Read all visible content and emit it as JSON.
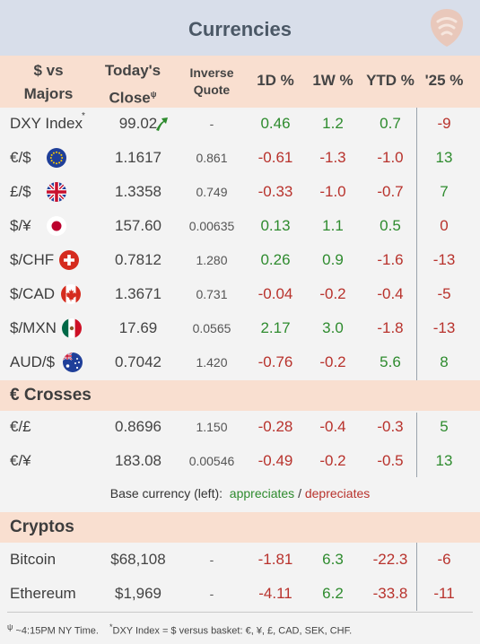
{
  "title": "Currencies",
  "header": {
    "col_pair": "$ vs Majors",
    "col_pair_l1": "$ vs",
    "col_pair_l2": "Majors",
    "col_close_l1": "Today's",
    "col_close_l2": "Close",
    "col_close_mark": "ψ",
    "col_inv_l1": "Inverse",
    "col_inv_l2": "Quote",
    "col_1d": "1D %",
    "col_1w": "1W %",
    "col_ytd": "YTD %",
    "col_25": "'25 %"
  },
  "colors": {
    "positive": "#2e8b2e",
    "negative": "#b8322c",
    "header_bg": "#f9dfd0",
    "title_bg": "#d8deea"
  },
  "majors": [
    {
      "name": "DXY Index",
      "name_mark": "*",
      "close": "99.02",
      "inverse": "-",
      "d1": "0.46",
      "w1": "1.2",
      "ytd": "0.7",
      "y25": "-9",
      "icon": "up-arrow-icon"
    },
    {
      "name": "€/$",
      "close": "1.1617",
      "inverse": "0.861",
      "d1": "-0.61",
      "w1": "-1.3",
      "ytd": "-1.0",
      "y25": "13",
      "icon": "eu-flag-icon"
    },
    {
      "name": "£/$",
      "close": "1.3358",
      "inverse": "0.749",
      "d1": "-0.33",
      "w1": "-1.0",
      "ytd": "-0.7",
      "y25": "7",
      "icon": "uk-flag-icon"
    },
    {
      "name": "$/¥",
      "close": "157.60",
      "inverse": "0.00635",
      "d1": "0.13",
      "w1": "1.1",
      "ytd": "0.5",
      "y25": "0",
      "icon": "japan-flag-icon"
    },
    {
      "name": "$/CHF",
      "close": "0.7812",
      "inverse": "1.280",
      "d1": "0.26",
      "w1": "0.9",
      "ytd": "-1.6",
      "y25": "-13",
      "icon": "swiss-flag-icon"
    },
    {
      "name": "$/CAD",
      "close": "1.3671",
      "inverse": "0.731",
      "d1": "-0.04",
      "w1": "-0.2",
      "ytd": "-0.4",
      "y25": "-5",
      "icon": "canada-flag-icon"
    },
    {
      "name": "$/MXN",
      "close": "17.69",
      "inverse": "0.0565",
      "d1": "2.17",
      "w1": "3.0",
      "ytd": "-1.8",
      "y25": "-13",
      "icon": "mexico-flag-icon"
    },
    {
      "name": "AUD/$",
      "close": "0.7042",
      "inverse": "1.420",
      "d1": "-0.76",
      "w1": "-0.2",
      "ytd": "5.6",
      "y25": "8",
      "icon": "australia-flag-icon"
    }
  ],
  "crosses_title": "€ Crosses",
  "crosses": [
    {
      "name": "€/£",
      "close": "0.8696",
      "inverse": "1.150",
      "d1": "-0.28",
      "w1": "-0.4",
      "ytd": "-0.3",
      "y25": "5"
    },
    {
      "name": "€/¥",
      "close": "183.08",
      "inverse": "0.00546",
      "d1": "-0.49",
      "w1": "-0.2",
      "ytd": "-0.5",
      "y25": "13"
    }
  ],
  "note": {
    "prefix": "Base currency (left):",
    "up": "appreciates",
    "sep": "/",
    "down": "depreciates"
  },
  "cryptos_title": "Cryptos",
  "cryptos": [
    {
      "name": "Bitcoin",
      "close": "$68,108",
      "inverse": "-",
      "d1": "-1.81",
      "w1": "6.3",
      "ytd": "-22.3",
      "y25": "-6"
    },
    {
      "name": "Ethereum",
      "close": "$1,969",
      "inverse": "-",
      "d1": "-4.11",
      "w1": "6.2",
      "ytd": "-33.8",
      "y25": "-11"
    }
  ],
  "footer": {
    "mark1": "ψ",
    "text1": "~4:15PM NY Time.",
    "mark2": "*",
    "text2": "DXY Index = $ versus basket: €, ¥, £, CAD, SEK, CHF."
  },
  "chart_data": {
    "type": "table",
    "title": "Currencies",
    "columns": [
      "$ vs Majors",
      "Today's Close",
      "Inverse Quote",
      "1D %",
      "1W %",
      "YTD %",
      "'25 %"
    ],
    "rows": [
      [
        "DXY Index",
        99.02,
        null,
        0.46,
        1.2,
        0.7,
        -9
      ],
      [
        "€/$",
        1.1617,
        0.861,
        -0.61,
        -1.3,
        -1.0,
        13
      ],
      [
        "£/$",
        1.3358,
        0.749,
        -0.33,
        -1.0,
        -0.7,
        7
      ],
      [
        "$/¥",
        157.6,
        0.00635,
        0.13,
        1.1,
        0.5,
        0
      ],
      [
        "$/CHF",
        0.7812,
        1.28,
        0.26,
        0.9,
        -1.6,
        -13
      ],
      [
        "$/CAD",
        1.3671,
        0.731,
        -0.04,
        -0.2,
        -0.4,
        -5
      ],
      [
        "$/MXN",
        17.69,
        0.0565,
        2.17,
        3.0,
        -1.8,
        -13
      ],
      [
        "AUD/$",
        0.7042,
        1.42,
        -0.76,
        -0.2,
        5.6,
        8
      ],
      [
        "€/£",
        0.8696,
        1.15,
        -0.28,
        -0.4,
        -0.3,
        5
      ],
      [
        "€/¥",
        183.08,
        0.00546,
        -0.49,
        -0.2,
        -0.5,
        13
      ],
      [
        "Bitcoin",
        68108,
        null,
        -1.81,
        6.3,
        -22.3,
        -6
      ],
      [
        "Ethereum",
        1969,
        null,
        -4.11,
        6.2,
        -33.8,
        -11
      ]
    ]
  }
}
